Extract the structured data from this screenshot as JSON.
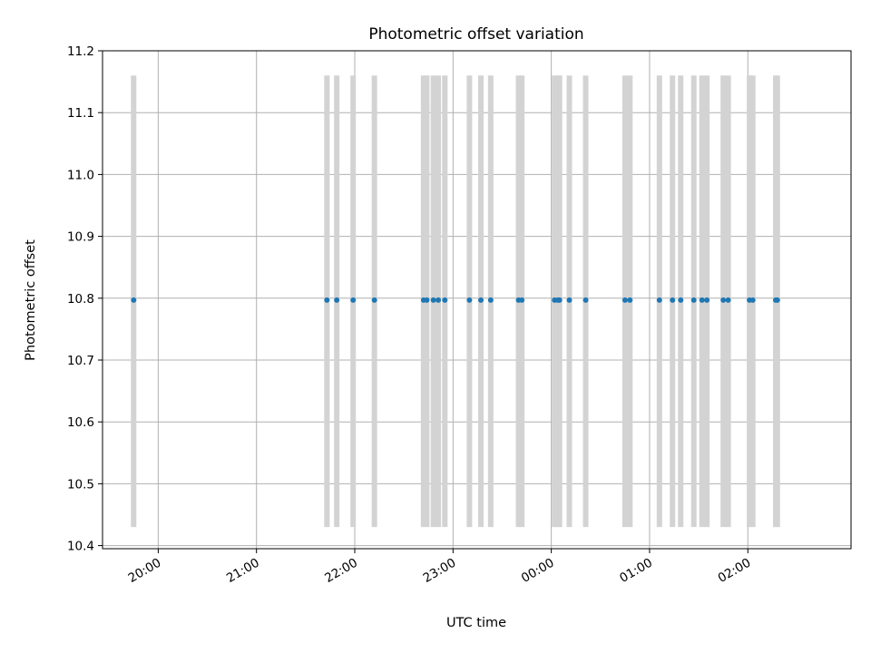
{
  "chart_data": {
    "type": "scatter",
    "title": "Photometric offset variation",
    "xlabel": "UTC time",
    "ylabel": "Photometric offset",
    "x_unit": "UTC time of day (hours, spanning midnight)",
    "xlim": [
      "19:26",
      "03:03"
    ],
    "ylim": [
      10.395,
      11.2
    ],
    "x_ticks": [
      "20:00",
      "21:00",
      "22:00",
      "23:00",
      "00:00",
      "01:00",
      "02:00"
    ],
    "y_ticks": [
      "10.4",
      "10.5",
      "10.6",
      "10.7",
      "10.8",
      "10.9",
      "11.0",
      "11.1",
      "11.2"
    ],
    "grid": true,
    "band_range": [
      10.43,
      11.16
    ],
    "series": [
      {
        "color": "#1f77b4",
        "x": [
          "19:45",
          "21:43",
          "21:49",
          "21:59",
          "22:12",
          "22:42",
          "22:44",
          "22:48",
          "22:51",
          "22:55",
          "23:10",
          "23:17",
          "23:23",
          "23:40",
          "23:42",
          "00:02",
          "00:04",
          "00:05",
          "00:11",
          "00:21",
          "00:45",
          "00:48",
          "01:06",
          "01:14",
          "01:19",
          "01:27",
          "01:32",
          "01:35",
          "01:45",
          "01:48",
          "02:01",
          "02:03",
          "02:17",
          "02:18"
        ],
        "y": [
          10.797,
          10.797,
          10.797,
          10.797,
          10.797,
          10.797,
          10.797,
          10.797,
          10.797,
          10.797,
          10.797,
          10.797,
          10.797,
          10.797,
          10.797,
          10.797,
          10.797,
          10.797,
          10.797,
          10.797,
          10.797,
          10.797,
          10.797,
          10.797,
          10.797,
          10.797,
          10.797,
          10.797,
          10.797,
          10.797,
          10.797,
          10.797,
          10.797,
          10.797
        ]
      }
    ],
    "band_color": "#d3d3d3"
  }
}
